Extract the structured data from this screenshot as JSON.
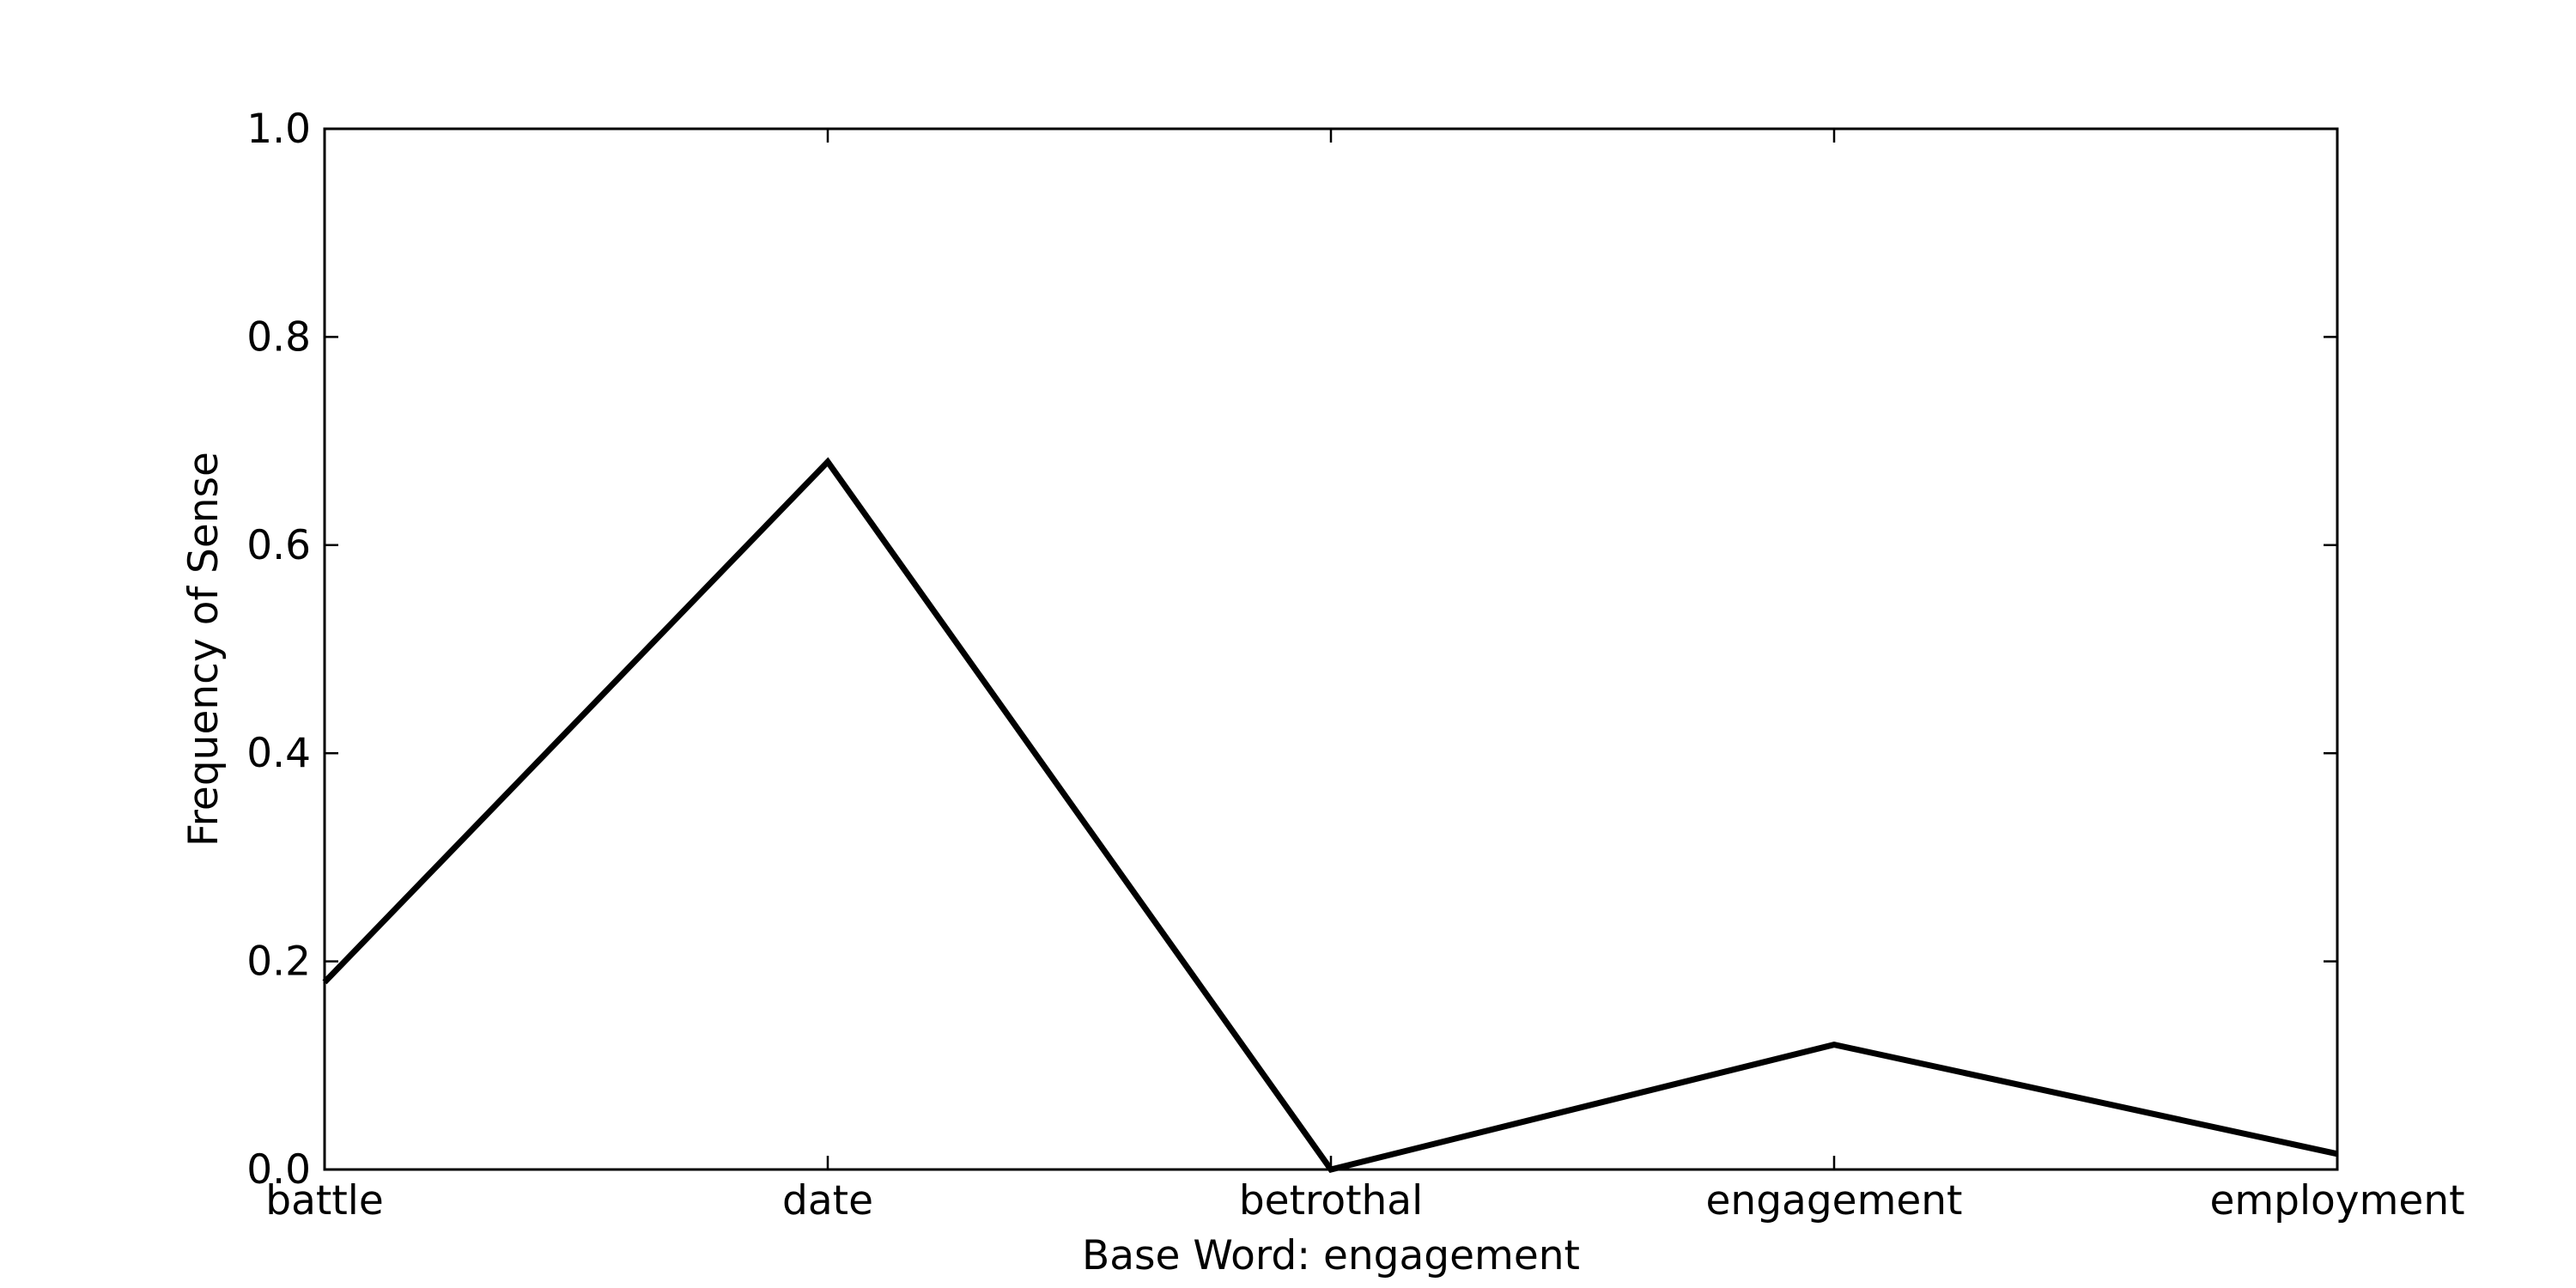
{
  "chart_data": {
    "type": "line",
    "title": "",
    "xlabel": "Base Word: engagement",
    "ylabel": "Frequency of Sense",
    "categories": [
      "battle",
      "date",
      "betrothal",
      "engagement",
      "employment"
    ],
    "series": [
      {
        "values": [
          0.18,
          0.68,
          0.0,
          0.12,
          0.015
        ]
      }
    ],
    "ylim": [
      0.0,
      1.0
    ],
    "yticks": [
      "0.0",
      "0.2",
      "0.4",
      "0.6",
      "0.8",
      "1.0"
    ],
    "grid": false,
    "legend": "none",
    "colors": {
      "line": "#000000",
      "axes": "#000000",
      "background": "#ffffff"
    }
  }
}
